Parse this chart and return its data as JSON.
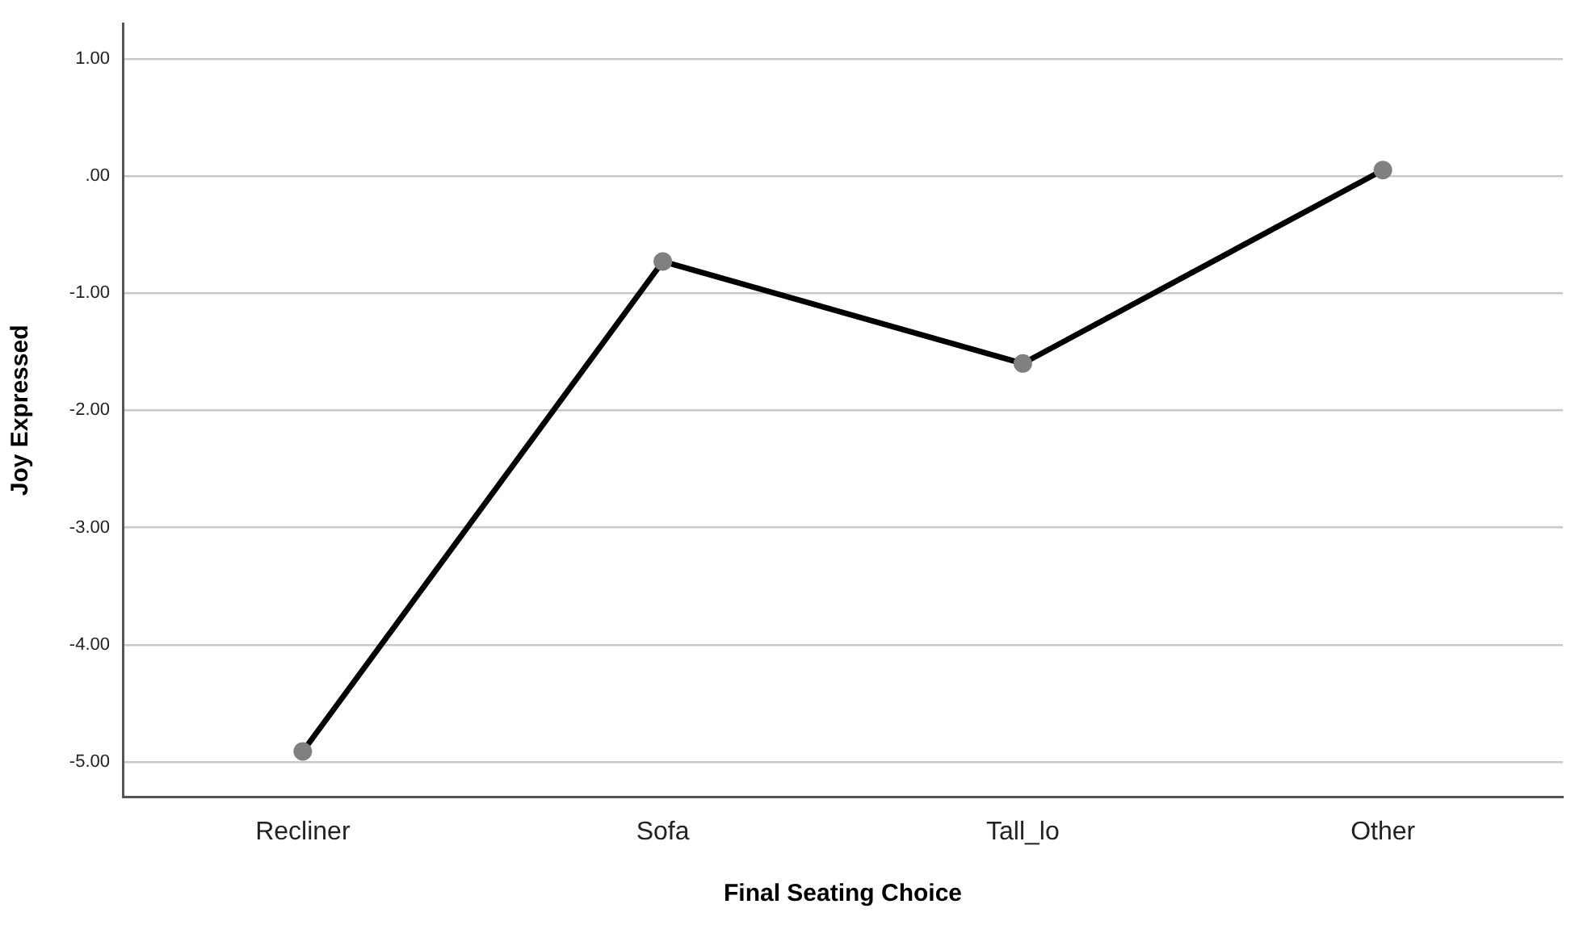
{
  "chart_data": {
    "type": "line",
    "xlabel": "Final Seating Choice",
    "ylabel": "Joy Expressed",
    "categories": [
      "Recliner",
      "Sofa",
      "Tall_lo",
      "Other"
    ],
    "series": [
      {
        "color": "#000000",
        "colors": [
          "#808080",
          "#808080",
          "#808080",
          "#808080"
        ],
        "values": [
          -4.91,
          -0.73,
          -1.6,
          0.05
        ]
      }
    ],
    "ylim": [
      -5.3,
      1.3
    ],
    "yticks": [
      {
        "value": -5,
        "label": "-5.00"
      },
      {
        "value": -4,
        "label": "-4.00"
      },
      {
        "value": -3,
        "label": "-3.00"
      },
      {
        "value": -2,
        "label": "-2.00"
      },
      {
        "value": -1,
        "label": "-1.00"
      },
      {
        "value": 0,
        "label": ".00"
      },
      {
        "value": 1,
        "label": "1.00"
      }
    ],
    "grid": "y",
    "legend": false,
    "marker": "circle",
    "line_style": "solid"
  }
}
